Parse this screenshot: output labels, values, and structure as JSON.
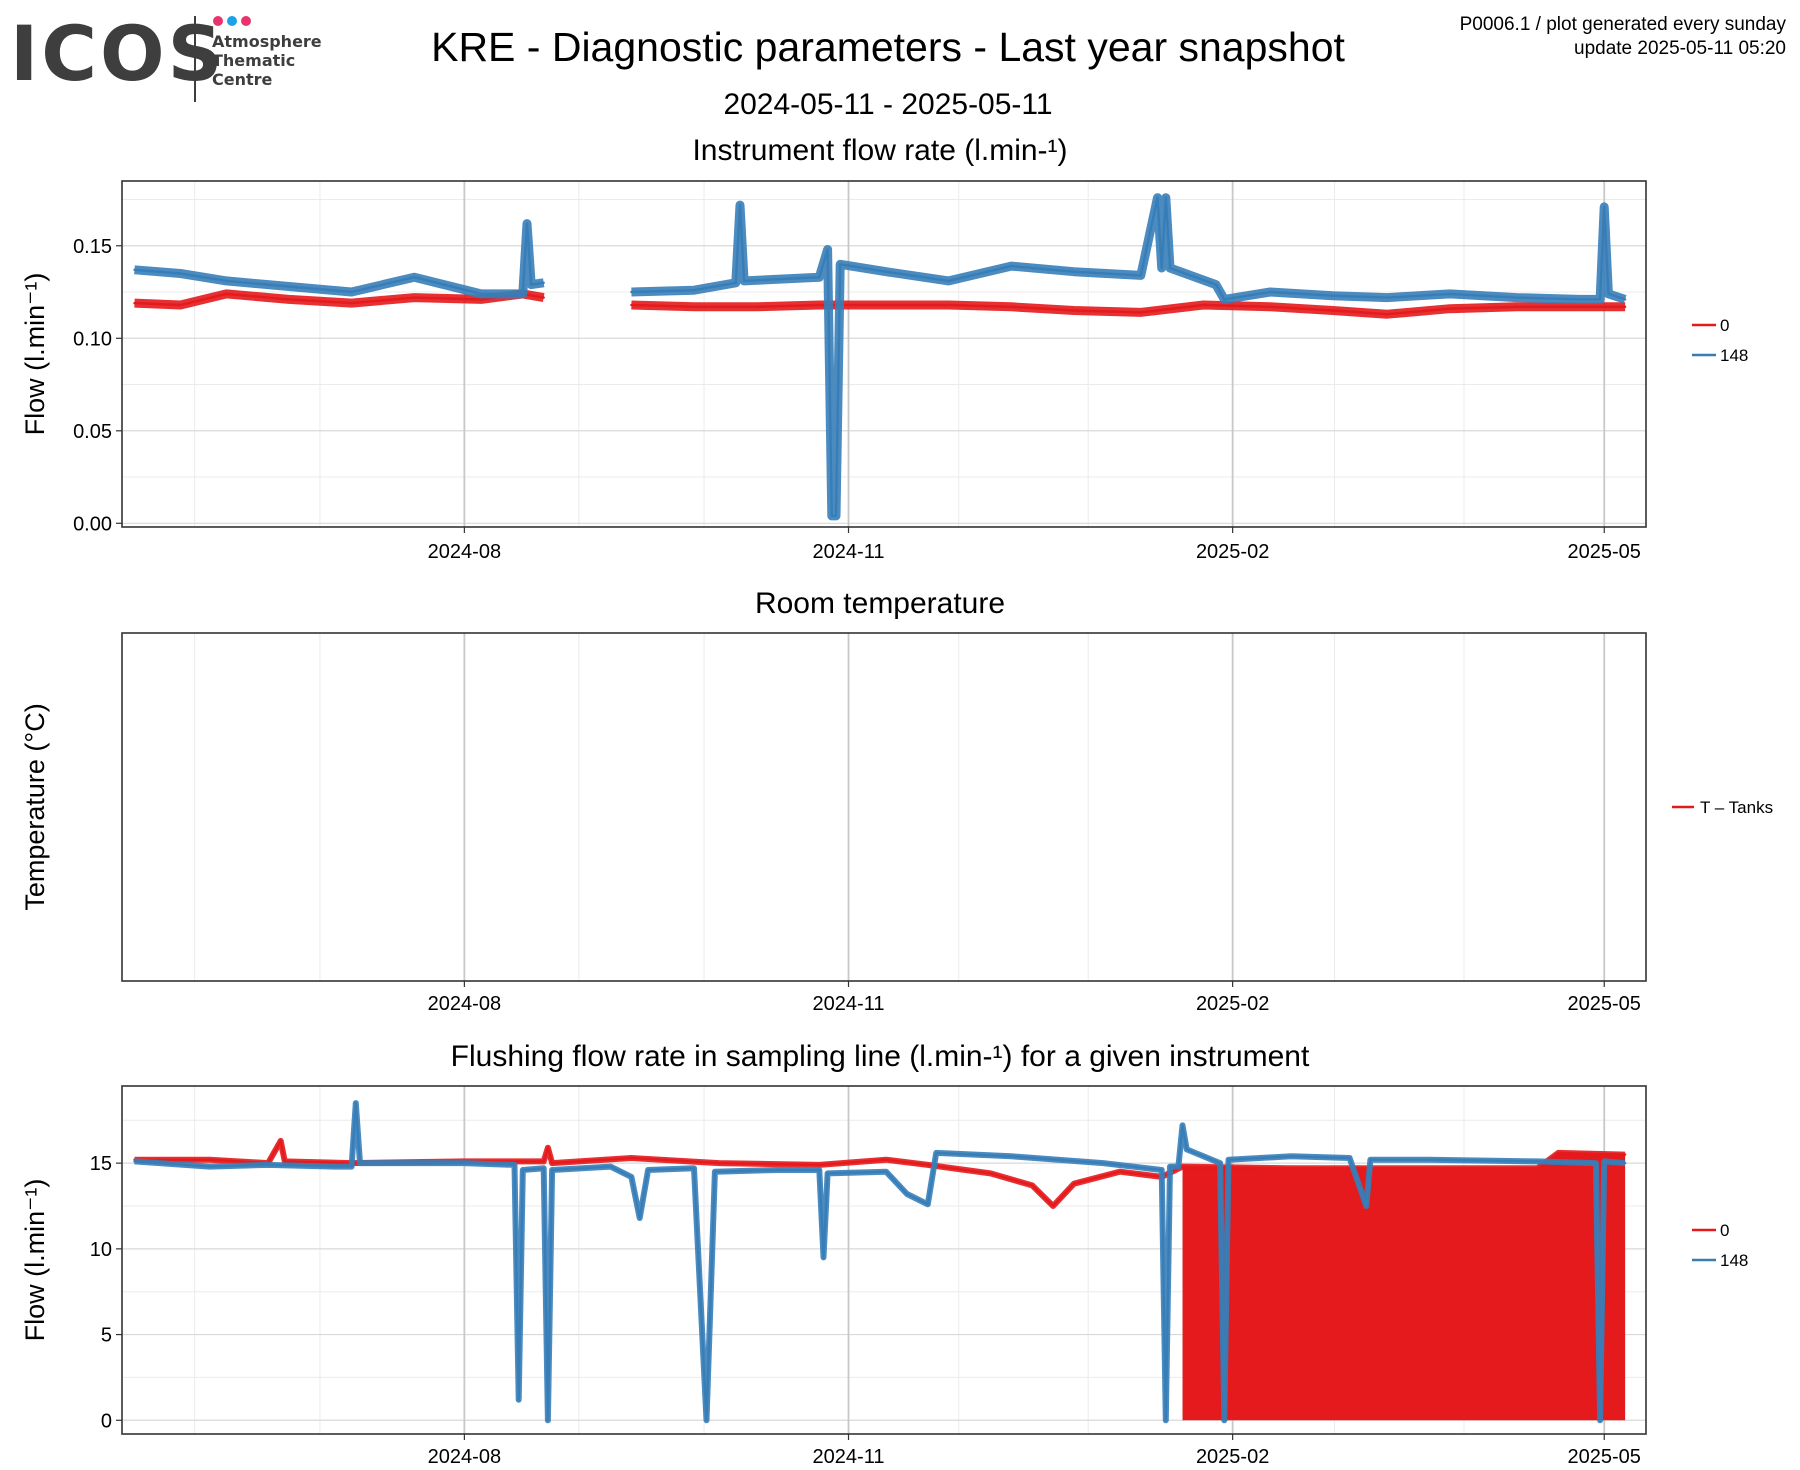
{
  "header": {
    "logo_text": "ICOS",
    "logo_lines": [
      "Atmosphere",
      "Thematic",
      "Centre"
    ],
    "logo_dot_colors": [
      "#e8336d",
      "#1aa1e6",
      "#e8336d"
    ],
    "title": "KRE - Diagnostic parameters - Last year snapshot",
    "date_range": "2024-05-11 - 2025-05-11",
    "meta_line1": "P0006.1 / plot generated every sunday",
    "meta_line2": "update  2025-05-11 05:20"
  },
  "chart_data": [
    {
      "type": "line",
      "title": "Instrument flow rate (l.min-¹)",
      "ylabel": "Flow (l.min⁻¹)",
      "x_range": [
        "2024-05-11",
        "2025-05-11"
      ],
      "ylim": [
        -0.002,
        0.185
      ],
      "y_ticks": [
        0.0,
        0.05,
        0.1,
        0.15
      ],
      "y_tick_labels": [
        "0.00",
        "0.05",
        "0.10",
        "0.15"
      ],
      "x_ticks": [
        "2024-08-01",
        "2024-11-01",
        "2025-02-01",
        "2025-05-01"
      ],
      "x_tick_labels": [
        "2024-08",
        "2024-11",
        "2025-02",
        "2025-05"
      ],
      "grid": true,
      "legend_position": "right",
      "series": [
        {
          "name": "0",
          "color": "#e41a1c",
          "points": [
            [
              "2024-05-14",
              0.119
            ],
            [
              "2024-05-25",
              0.118
            ],
            [
              "2024-06-05",
              0.124
            ],
            [
              "2024-06-20",
              0.121
            ],
            [
              "2024-07-05",
              0.119
            ],
            [
              "2024-07-20",
              0.122
            ],
            [
              "2024-08-05",
              0.121
            ],
            [
              "2024-08-15",
              0.124
            ],
            [
              "2024-08-20",
              0.122
            ],
            null,
            [
              "2024-09-10",
              0.118
            ],
            [
              "2024-09-25",
              0.117
            ],
            [
              "2024-10-10",
              0.117
            ],
            [
              "2024-10-25",
              0.118
            ],
            [
              "2024-11-10",
              0.118
            ],
            [
              "2024-11-25",
              0.118
            ],
            [
              "2024-12-10",
              0.117
            ],
            [
              "2024-12-25",
              0.115
            ],
            [
              "2025-01-10",
              0.114
            ],
            [
              "2025-01-25",
              0.118
            ],
            [
              "2025-02-10",
              0.117
            ],
            [
              "2025-02-25",
              0.115
            ],
            [
              "2025-03-10",
              0.113
            ],
            [
              "2025-03-25",
              0.116
            ],
            [
              "2025-04-10",
              0.117
            ],
            [
              "2025-04-25",
              0.117
            ],
            [
              "2025-05-06",
              0.117
            ]
          ]
        },
        {
          "name": "148",
          "color": "#377eb8",
          "points": [
            [
              "2024-05-14",
              0.137
            ],
            [
              "2024-05-25",
              0.135
            ],
            [
              "2024-06-05",
              0.131
            ],
            [
              "2024-06-20",
              0.128
            ],
            [
              "2024-07-05",
              0.125
            ],
            [
              "2024-07-20",
              0.133
            ],
            [
              "2024-08-05",
              0.124
            ],
            [
              "2024-08-15",
              0.124
            ],
            [
              "2024-08-16",
              0.162
            ],
            [
              "2024-08-17",
              0.129
            ],
            [
              "2024-08-20",
              0.13
            ],
            null,
            [
              "2024-09-10",
              0.125
            ],
            [
              "2024-09-25",
              0.126
            ],
            [
              "2024-10-05",
              0.13
            ],
            [
              "2024-10-06",
              0.172
            ],
            [
              "2024-10-07",
              0.131
            ],
            [
              "2024-10-25",
              0.133
            ],
            [
              "2024-10-27",
              0.148
            ],
            [
              "2024-10-28",
              0.004
            ],
            [
              "2024-10-29",
              0.004
            ],
            [
              "2024-10-30",
              0.14
            ],
            [
              "2024-11-10",
              0.136
            ],
            [
              "2024-11-25",
              0.131
            ],
            [
              "2024-12-10",
              0.139
            ],
            [
              "2024-12-25",
              0.136
            ],
            [
              "2025-01-10",
              0.134
            ],
            [
              "2025-01-14",
              0.176
            ],
            [
              "2025-01-15",
              0.138
            ],
            [
              "2025-01-16",
              0.176
            ],
            [
              "2025-01-17",
              0.138
            ],
            [
              "2025-01-28",
              0.129
            ],
            [
              "2025-01-30",
              0.121
            ],
            [
              "2025-02-10",
              0.125
            ],
            [
              "2025-02-25",
              0.123
            ],
            [
              "2025-03-10",
              0.122
            ],
            [
              "2025-03-25",
              0.124
            ],
            [
              "2025-04-10",
              0.122
            ],
            [
              "2025-04-25",
              0.121
            ],
            [
              "2025-04-30",
              0.121
            ],
            [
              "2025-05-01",
              0.171
            ],
            [
              "2025-05-02",
              0.124
            ],
            [
              "2025-05-06",
              0.121
            ]
          ]
        }
      ]
    },
    {
      "type": "line",
      "title": "Room temperature",
      "ylabel": "Temperature (°C)",
      "x_range": [
        "2024-05-11",
        "2025-05-11"
      ],
      "x_ticks": [
        "2024-08-01",
        "2024-11-01",
        "2025-02-01",
        "2025-05-01"
      ],
      "x_tick_labels": [
        "2024-08",
        "2024-11",
        "2025-02",
        "2025-05"
      ],
      "grid": true,
      "legend_position": "right",
      "series": [
        {
          "name": "T – Tanks",
          "color": "#e41a1c",
          "points": []
        }
      ]
    },
    {
      "type": "line",
      "title": "Flushing flow rate in sampling line (l.min-¹) for a given instrument",
      "ylabel": "Flow (l.min⁻¹)",
      "x_range": [
        "2024-05-11",
        "2025-05-11"
      ],
      "ylim": [
        -0.8,
        19.5
      ],
      "y_ticks": [
        0,
        5,
        10,
        15
      ],
      "y_tick_labels": [
        "0",
        "5",
        "10",
        "15"
      ],
      "x_ticks": [
        "2024-08-01",
        "2024-11-01",
        "2025-02-01",
        "2025-05-01"
      ],
      "x_tick_labels": [
        "2024-08",
        "2024-11",
        "2025-02",
        "2025-05"
      ],
      "grid": true,
      "legend_position": "right",
      "red_fill_from_to": [
        "2025-01-20",
        "2025-05-06"
      ],
      "series": [
        {
          "name": "0",
          "color": "#e41a1c",
          "points": [
            [
              "2024-05-14",
              15.2
            ],
            [
              "2024-06-01",
              15.2
            ],
            [
              "2024-06-15",
              15.0
            ],
            [
              "2024-06-18",
              16.3
            ],
            [
              "2024-06-19",
              15.1
            ],
            [
              "2024-07-05",
              15.0
            ],
            [
              "2024-08-01",
              15.1
            ],
            [
              "2024-08-20",
              15.1
            ],
            [
              "2024-08-21",
              15.9
            ],
            [
              "2024-08-22",
              15.0
            ],
            [
              "2024-09-10",
              15.3
            ],
            [
              "2024-10-01",
              15.0
            ],
            [
              "2024-10-25",
              14.9
            ],
            [
              "2024-11-10",
              15.2
            ],
            [
              "2024-11-20",
              14.9
            ],
            [
              "2024-12-05",
              14.4
            ],
            [
              "2024-12-15",
              13.7
            ],
            [
              "2024-12-20",
              12.5
            ],
            [
              "2024-12-25",
              13.8
            ],
            [
              "2025-01-05",
              14.5
            ],
            [
              "2025-01-15",
              14.2
            ],
            [
              "2025-01-20",
              14.8
            ],
            [
              "2025-02-15",
              14.7
            ],
            [
              "2025-03-15",
              14.7
            ],
            [
              "2025-04-15",
              14.7
            ],
            [
              "2025-04-20",
              15.6
            ],
            [
              "2025-05-06",
              15.5
            ]
          ]
        },
        {
          "name": "148",
          "color": "#377eb8",
          "points": [
            [
              "2024-05-14",
              15.1
            ],
            [
              "2024-06-01",
              14.8
            ],
            [
              "2024-06-15",
              14.9
            ],
            [
              "2024-07-01",
              14.8
            ],
            [
              "2024-07-05",
              14.8
            ],
            [
              "2024-07-06",
              18.5
            ],
            [
              "2024-07-07",
              15.0
            ],
            [
              "2024-07-20",
              15.0
            ],
            [
              "2024-08-01",
              15.0
            ],
            [
              "2024-08-13",
              14.9
            ],
            [
              "2024-08-14",
              1.2
            ],
            [
              "2024-08-15",
              14.6
            ],
            [
              "2024-08-20",
              14.7
            ],
            [
              "2024-08-21",
              0.0
            ],
            [
              "2024-08-22",
              14.6
            ],
            [
              "2024-09-05",
              14.8
            ],
            [
              "2024-09-10",
              14.2
            ],
            [
              "2024-09-12",
              11.8
            ],
            [
              "2024-09-14",
              14.6
            ],
            [
              "2024-09-25",
              14.7
            ],
            [
              "2024-09-28",
              0.0
            ],
            [
              "2024-09-30",
              14.5
            ],
            [
              "2024-10-15",
              14.6
            ],
            [
              "2024-10-25",
              14.6
            ],
            [
              "2024-10-26",
              9.5
            ],
            [
              "2024-10-27",
              14.4
            ],
            [
              "2024-11-10",
              14.5
            ],
            [
              "2024-11-15",
              13.2
            ],
            [
              "2024-11-20",
              12.6
            ],
            [
              "2024-11-22",
              15.6
            ],
            [
              "2024-12-10",
              15.4
            ],
            [
              "2025-01-01",
              15.0
            ],
            [
              "2025-01-15",
              14.6
            ],
            [
              "2025-01-16",
              0.0
            ],
            [
              "2025-01-17",
              14.8
            ],
            [
              "2025-01-19",
              14.8
            ],
            [
              "2025-01-20",
              17.2
            ],
            [
              "2025-01-21",
              15.8
            ],
            [
              "2025-01-29",
              15.0
            ],
            [
              "2025-01-30",
              0.0
            ],
            [
              "2025-01-31",
              15.2
            ],
            [
              "2025-02-15",
              15.4
            ],
            [
              "2025-03-01",
              15.3
            ],
            [
              "2025-03-05",
              12.5
            ],
            [
              "2025-03-06",
              15.2
            ],
            [
              "2025-03-20",
              15.2
            ],
            [
              "2025-04-15",
              15.1
            ],
            [
              "2025-04-29",
              15.0
            ],
            [
              "2025-04-30",
              0.0
            ],
            [
              "2025-05-01",
              15.1
            ],
            [
              "2025-05-06",
              15.0
            ]
          ]
        }
      ]
    }
  ]
}
